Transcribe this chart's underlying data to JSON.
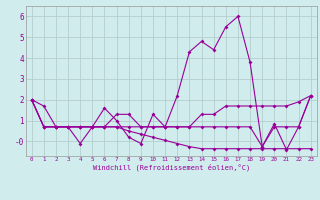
{
  "xlabel": "Windchill (Refroidissement éolien,°C)",
  "x": [
    0,
    1,
    2,
    3,
    4,
    5,
    6,
    7,
    8,
    9,
    10,
    11,
    12,
    13,
    14,
    15,
    16,
    17,
    18,
    19,
    20,
    21,
    22,
    23
  ],
  "line1": [
    2.0,
    1.7,
    0.7,
    0.7,
    -0.1,
    0.7,
    1.6,
    1.0,
    0.2,
    -0.1,
    1.3,
    0.7,
    2.2,
    4.3,
    4.8,
    4.4,
    5.5,
    6.0,
    3.8,
    -0.25,
    0.85,
    -0.4,
    0.7,
    2.2
  ],
  "line2": [
    2.0,
    0.7,
    0.7,
    0.7,
    0.7,
    0.7,
    0.7,
    1.3,
    1.3,
    0.7,
    0.7,
    0.7,
    0.7,
    0.7,
    1.3,
    1.3,
    1.7,
    1.7,
    1.7,
    1.7,
    1.7,
    1.7,
    1.9,
    2.2
  ],
  "line3": [
    2.0,
    0.7,
    0.7,
    0.7,
    0.7,
    0.7,
    0.7,
    0.7,
    0.7,
    0.7,
    0.7,
    0.7,
    0.7,
    0.7,
    0.7,
    0.7,
    0.7,
    0.7,
    0.7,
    -0.25,
    0.7,
    0.7,
    0.7,
    2.2
  ],
  "line4": [
    2.0,
    0.7,
    0.7,
    0.7,
    0.7,
    0.7,
    0.7,
    0.7,
    0.5,
    0.35,
    0.2,
    0.05,
    -0.1,
    -0.25,
    -0.35,
    -0.35,
    -0.35,
    -0.35,
    -0.35,
    -0.35,
    -0.35,
    -0.35,
    -0.35,
    -0.35
  ],
  "color": "#990099",
  "bg_color": "#d0ecec",
  "grid_color": "#b0c8c8",
  "ylim": [
    -0.7,
    6.5
  ],
  "xlim": [
    -0.5,
    23.5
  ],
  "yticks": [
    0,
    1,
    2,
    3,
    4,
    5,
    6
  ],
  "ytick_labels": [
    "-0",
    "1",
    "2",
    "3",
    "4",
    "5",
    "6"
  ],
  "xticks": [
    0,
    1,
    2,
    3,
    4,
    5,
    6,
    7,
    8,
    9,
    10,
    11,
    12,
    13,
    14,
    15,
    16,
    17,
    18,
    19,
    20,
    21,
    22,
    23
  ],
  "figsize": [
    3.2,
    2.0
  ],
  "dpi": 100
}
